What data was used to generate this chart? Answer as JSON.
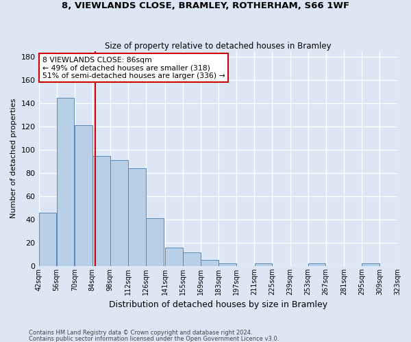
{
  "title1": "8, VIEWLANDS CLOSE, BRAMLEY, ROTHERHAM, S66 1WF",
  "title2": "Size of property relative to detached houses in Bramley",
  "xlabel": "Distribution of detached houses by size in Bramley",
  "ylabel": "Number of detached properties",
  "footer1": "Contains HM Land Registry data © Crown copyright and database right 2024.",
  "footer2": "Contains public sector information licensed under the Open Government Licence v3.0.",
  "annotation_line1": "8 VIEWLANDS CLOSE: 86sqm",
  "annotation_line2": "← 49% of detached houses are smaller (318)",
  "annotation_line3": "51% of semi-detached houses are larger (336) →",
  "bin_edges": [
    42,
    56,
    70,
    84,
    98,
    112,
    126,
    141,
    155,
    169,
    183,
    197,
    211,
    225,
    239,
    253,
    267,
    281,
    295,
    309,
    323
  ],
  "bin_labels": [
    "42sqm",
    "56sqm",
    "70sqm",
    "84sqm",
    "98sqm",
    "112sqm",
    "126sqm",
    "141sqm",
    "155sqm",
    "169sqm",
    "183sqm",
    "197sqm",
    "211sqm",
    "225sqm",
    "239sqm",
    "253sqm",
    "267sqm",
    "281sqm",
    "295sqm",
    "309sqm",
    "323sqm"
  ],
  "bar_heights": [
    46,
    145,
    121,
    95,
    91,
    84,
    41,
    16,
    12,
    5,
    2,
    0,
    2,
    0,
    0,
    2,
    0,
    0,
    2,
    0
  ],
  "bar_color": "#b8cfe8",
  "bar_edgecolor": "#5588bb",
  "redline_x": 86,
  "ylim": [
    0,
    185
  ],
  "yticks": [
    0,
    20,
    40,
    60,
    80,
    100,
    120,
    140,
    160,
    180
  ],
  "bg_color": "#dce6f5",
  "grid_color": "#ffffff",
  "annotation_box_color": "#ffffff",
  "annotation_box_edgecolor": "#cc0000",
  "redline_color": "#cc0000",
  "title1_fontsize": 9.5,
  "title2_fontsize": 8.5,
  "ylabel_fontsize": 8,
  "xlabel_fontsize": 9
}
